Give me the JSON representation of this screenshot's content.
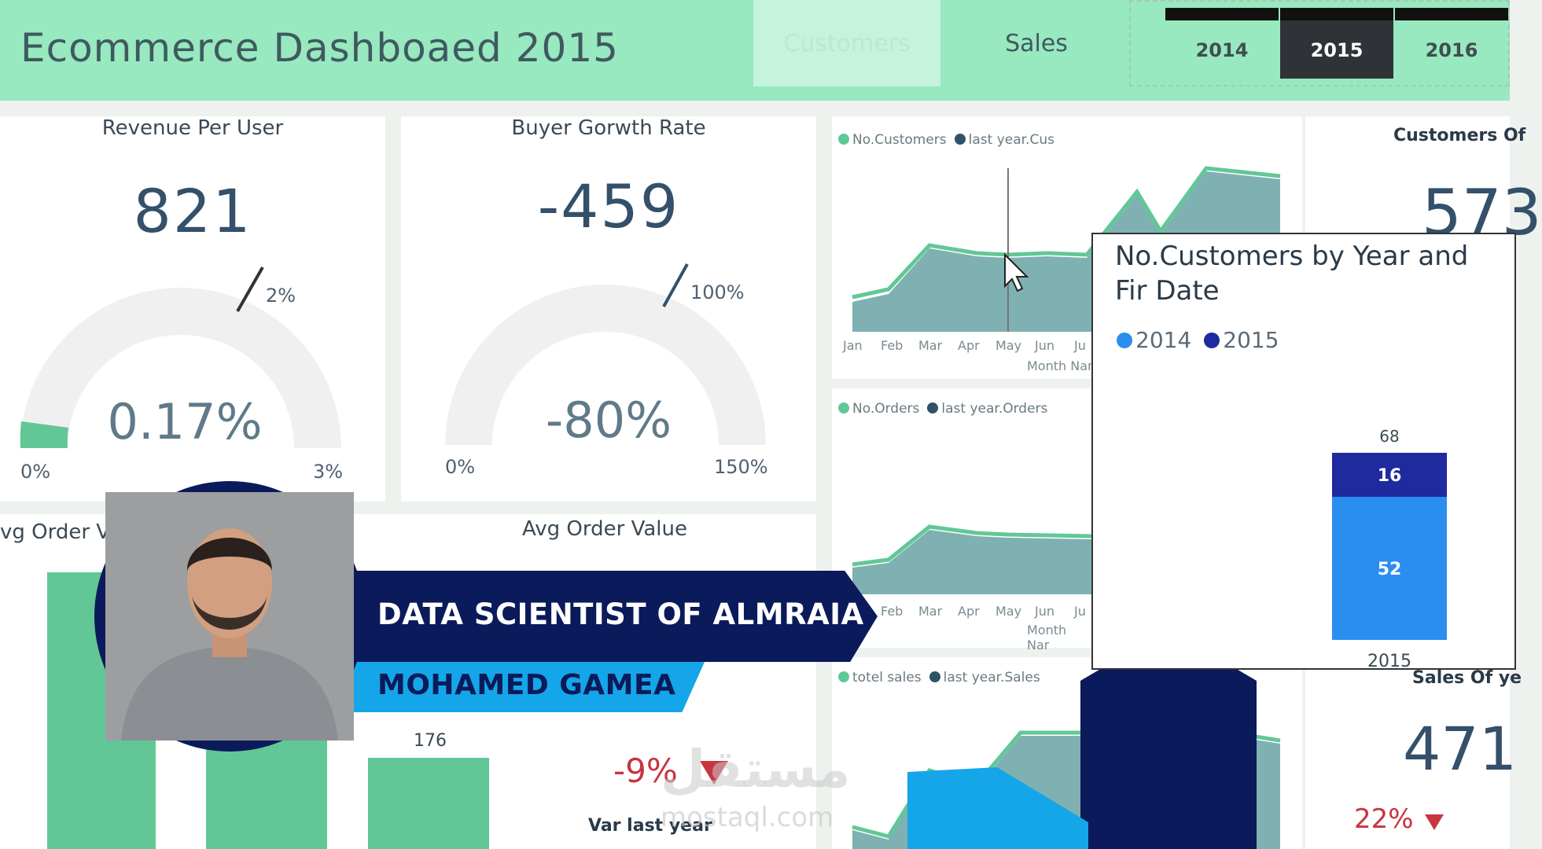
{
  "header": {
    "title": "Ecommerce Dashboaed 2015",
    "nav": {
      "customers": "Customers",
      "sales": "Sales"
    },
    "years": [
      "2014",
      "2015",
      "2016"
    ],
    "selected_year": "2015"
  },
  "revenue_per_user": {
    "title": "Revenue Per User",
    "value": "821",
    "gauge": {
      "percent": "0.17%",
      "min": "0%",
      "max": "3%",
      "target": "2%"
    }
  },
  "buyer_growth": {
    "title": "Buyer Gorwth Rate",
    "value": "-459",
    "gauge": {
      "percent": "-80%",
      "min": "0%",
      "max": "150%",
      "target": "100%"
    }
  },
  "customers_chart": {
    "legend": [
      "No.Customers",
      "last year.Cus"
    ],
    "months": [
      "Jan",
      "Feb",
      "Mar",
      "Apr",
      "May",
      "Jun",
      "Ju"
    ],
    "xlabel": "Month Nar"
  },
  "orders_chart": {
    "legend": [
      "No.Orders",
      "last year.Orders"
    ],
    "months": [
      "Feb",
      "Mar",
      "Apr",
      "May",
      "Jun",
      "Ju"
    ],
    "xlabel": "Month Nar"
  },
  "sales_chart": {
    "legend": [
      "totel sales",
      "last year.Sales"
    ]
  },
  "customers_kpi": {
    "title": "Customers Of",
    "value": "573"
  },
  "sales_kpi": {
    "title": "Sales Of ye",
    "value": "471",
    "change": "22%"
  },
  "avg_order_left": {
    "title": "vg Order Valu"
  },
  "avg_order": {
    "title": "Avg Order Value",
    "bar_label": "176",
    "change": "-9%",
    "change_label": "Var last year"
  },
  "tooltip": {
    "title": "No.Customers by Year and Fir Date",
    "legend": [
      "2014",
      "2015"
    ],
    "chart_data": {
      "type": "bar",
      "categories": [
        "2015"
      ],
      "series": [
        {
          "name": "2014",
          "values": [
            52
          ]
        },
        {
          "name": "2015",
          "values": [
            16
          ]
        }
      ],
      "total": "68"
    }
  },
  "presenter": {
    "role": "DATA SCIENTIST OF ALMRAIA",
    "name": "MOHAMED GAMEA"
  },
  "watermark": {
    "arabic": "مستقل",
    "latin": "mostaql.com"
  },
  "colors": {
    "header": "#98e8c0",
    "area": "#7fb1b2",
    "accent_green": "#62c796",
    "navy": "#0b1a5a",
    "blue": "#14a6e8",
    "negative": "#c8353f"
  }
}
